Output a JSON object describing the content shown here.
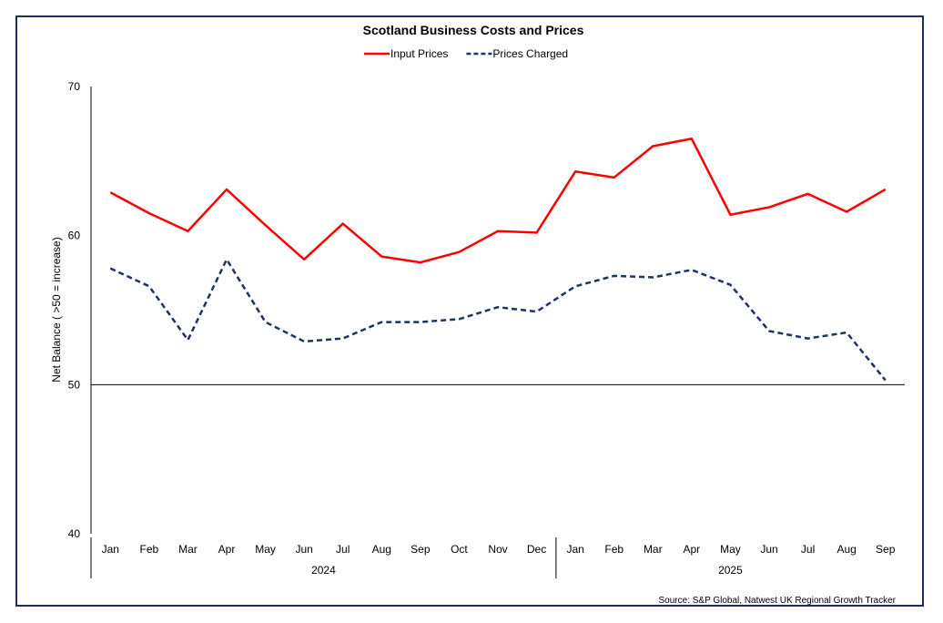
{
  "chart_data": {
    "type": "line",
    "title": "Scotland Business Costs and Prices",
    "ylabel": "Net Balance ( >50 = increase)",
    "xlabel": "",
    "ylim": [
      40,
      70
    ],
    "yticks": [
      40,
      50,
      60,
      70
    ],
    "grid": false,
    "legend": "top",
    "categories": [
      "Jan",
      "Feb",
      "Mar",
      "Apr",
      "May",
      "Jun",
      "Jul",
      "Aug",
      "Sep",
      "Oct",
      "Nov",
      "Dec",
      "Jan",
      "Feb",
      "Mar",
      "Apr",
      "May",
      "Jun",
      "Jul",
      "Aug",
      "Sep"
    ],
    "year_groups": [
      {
        "label": "2024",
        "count": 12
      },
      {
        "label": "2025",
        "count": 9
      }
    ],
    "reference_line": 50,
    "series": [
      {
        "name": "Input Prices",
        "color": "#ff0000",
        "dash": "solid",
        "values": [
          62.9,
          61.5,
          60.3,
          63.1,
          60.7,
          58.4,
          60.8,
          58.6,
          58.2,
          58.9,
          60.3,
          60.2,
          64.3,
          63.9,
          66.0,
          66.5,
          61.4,
          61.9,
          62.8,
          61.6,
          63.1
        ]
      },
      {
        "name": "Prices Charged",
        "color": "#1f3264",
        "dash": "dashed",
        "values": [
          57.8,
          56.6,
          53.0,
          58.4,
          54.2,
          52.9,
          53.1,
          54.2,
          54.2,
          54.4,
          55.2,
          54.9,
          56.6,
          57.3,
          57.2,
          57.7,
          56.7,
          53.6,
          53.1,
          53.5,
          50.3
        ]
      }
    ],
    "source": "Source: S&P Global, Natwest UK Regional Growth Tracker"
  }
}
